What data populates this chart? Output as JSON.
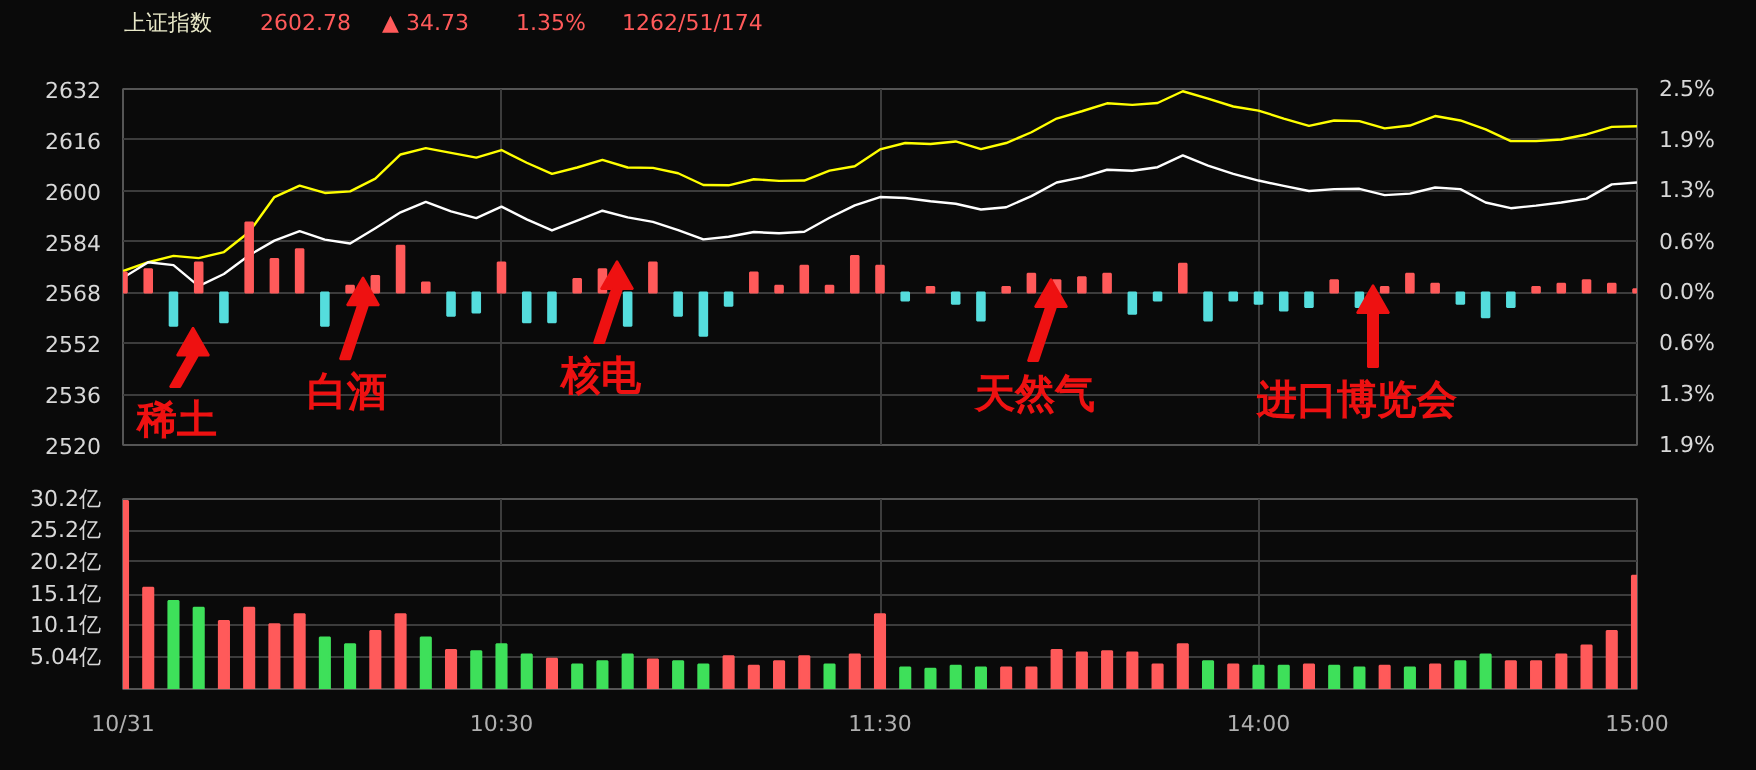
{
  "chart_data": [
    {
      "type": "line",
      "title": "上证指数",
      "annotations": [
        "2602.78",
        "▲ 34.73",
        "1.35%",
        "1262/51/174",
        {
          "text": "稀土",
          "y": 2557
        },
        {
          "text": "白酒",
          "y": 2572.8
        },
        {
          "text": "核电",
          "y": 2577.9
        },
        "天然气",
        "进口博览会"
      ],
      "categories": [
        null,
        null,
        null,
        null,
        null,
        null,
        null,
        null,
        null,
        null,
        null,
        null,
        null,
        null,
        null,
        null,
        null,
        null,
        null,
        null,
        null,
        null,
        null,
        null,
        null,
        null,
        null,
        null,
        null,
        null,
        null,
        null,
        null,
        null,
        null,
        null,
        null,
        null,
        null,
        null,
        null,
        null,
        null,
        null,
        null,
        null,
        null,
        null,
        null,
        null,
        null,
        null,
        null,
        null,
        null,
        null,
        null,
        null,
        null,
        null,
        null
      ],
      "ylim": [
        2520,
        2632
      ],
      "yticks": [
        2520,
        2536,
        2552,
        2568,
        2584,
        2600,
        2616,
        2632
      ],
      "y2lim": [
        -1.87,
        2.49
      ],
      "y2ticks": [
        {
          "value": -1.87,
          "label": "1.9%"
        },
        {
          "value": -1.25,
          "label": "1.3%"
        },
        {
          "value": -0.62,
          "label": "0.6%"
        },
        {
          "value": 0,
          "label": "0.0%"
        },
        {
          "value": 0.62,
          "label": "0.6%"
        },
        {
          "value": 1.25,
          "label": "1.3%"
        },
        {
          "value": 1.87,
          "label": "1.9%"
        },
        {
          "value": 2.49,
          "label": "2.5%"
        }
      ],
      "tick_labels": "y",
      "grid": true,
      "series": [
        {
          "type": "line",
          "color": "#ffff00",
          "values": [
            2574.7,
            2577.5,
            2579.5,
            2578.8,
            2580.7,
            2587,
            2598,
            2601.6,
            2599.3,
            2599.8,
            2603.8,
            2611.4,
            2613.4,
            2611.9,
            2610.4,
            2612.8,
            2608.8,
            2605.3,
            2607.3,
            2609.7,
            2607.3,
            2607.2,
            2605.5,
            2601.8,
            2601.7,
            2603.6,
            2603.1,
            2603.2,
            2606.3,
            2607.7,
            2613,
            2615,
            2614.7,
            2615.5,
            2613.1,
            2615,
            2618.4,
            2622.7,
            2625,
            2627.5,
            2627,
            2627.6,
            2631.3,
            2629,
            2626.5,
            2625.2,
            2622.7,
            2620.4,
            2622.1,
            2621.9,
            2619.6,
            2620.5,
            2623.5,
            2622.1,
            2619.3,
            2615.6,
            2615.6,
            2616.1,
            2617.7,
            2620.1,
            2620.3
          ]
        },
        {
          "type": "line",
          "color": "#ffffff",
          "values": [
            2572.6,
            2577.5,
            2576.6,
            2570,
            2573.8,
            2579.7,
            2584.3,
            2587.3,
            2584.6,
            2583.4,
            2588.2,
            2593.2,
            2596.5,
            2593.5,
            2591.4,
            2595,
            2591,
            2587.5,
            2590.6,
            2593.7,
            2591.6,
            2590.2,
            2587.6,
            2584.7,
            2585.5,
            2587,
            2586.6,
            2587.1,
            2591.5,
            2595.4,
            2598,
            2597.7,
            2596.7,
            2595.9,
            2594.1,
            2594.8,
            2598.3,
            2602.6,
            2604.2,
            2606.6,
            2606.3,
            2607.4,
            2611.1,
            2607.9,
            2605.3,
            2603.2,
            2601.5,
            2599.9,
            2600.5,
            2600.6,
            2598.6,
            2599.1,
            2601,
            2600.5,
            2596.3,
            2594.5,
            2595.3,
            2596.3,
            2597.5,
            2602,
            2602.6
          ]
        },
        {
          "type": "bar",
          "values": [
            6.3,
            7.3,
            -10.5,
            9.4,
            -9.4,
            22.0,
            10.5,
            13.6,
            -10.5,
            2.1,
            5.2,
            14.7,
            3.1,
            -7.3,
            -6.3,
            9.4,
            -9.4,
            -9.4,
            4.2,
            7.3,
            -10.5,
            9.4,
            -7.3,
            -13.6,
            -4.2,
            6.3,
            2.1,
            8.4,
            2.1,
            11.5,
            8.4,
            -2.5,
            1.7,
            -3.6,
            -8.8,
            1.7,
            5.9,
            3.8,
            4.8,
            5.9,
            -6.7,
            -2.5,
            9.0,
            -8.8,
            -2.5,
            -3.6,
            -5.7,
            -4.6,
            3.8,
            -4.6,
            1.7,
            5.9,
            2.7,
            -3.6,
            -7.8,
            -4.6,
            1.7,
            2.7,
            3.8,
            2.7,
            1.0
          ],
          "base": [
            2568,
            2568,
            2568,
            2568,
            2568,
            2568,
            2568,
            2568,
            2568,
            2568,
            2568,
            2568,
            2568,
            2568,
            2568,
            2568,
            2568,
            2568,
            2568,
            2568,
            2568,
            2568,
            2568,
            2568,
            2568,
            2568,
            2568,
            2568,
            2568,
            2568,
            2568,
            2568,
            2568,
            2568,
            2568,
            2568,
            2568,
            2568,
            2568,
            2568,
            2568,
            2568,
            2568,
            2568,
            2568,
            2568,
            2568,
            2568,
            2568,
            2568,
            2568,
            2568,
            2568,
            2568,
            2568,
            2568,
            2568,
            2568,
            2568,
            2568,
            2568
          ],
          "colors": [
            "#ff5a5a",
            "#ff5a5a",
            "#55dddd",
            "#ff5a5a",
            "#55dddd",
            "#ff5a5a",
            "#ff5a5a",
            "#ff5a5a",
            "#55dddd",
            "#ff5a5a",
            "#ff5a5a",
            "#ff5a5a",
            "#ff5a5a",
            "#55dddd",
            "#55dddd",
            "#ff5a5a",
            "#55dddd",
            "#55dddd",
            "#ff5a5a",
            "#ff5a5a",
            "#55dddd",
            "#ff5a5a",
            "#55dddd",
            "#55dddd",
            "#55dddd",
            "#ff5a5a",
            "#ff5a5a",
            "#ff5a5a",
            "#ff5a5a",
            "#ff5a5a",
            "#ff5a5a",
            "#55dddd",
            "#ff5a5a",
            "#55dddd",
            "#55dddd",
            "#ff5a5a",
            "#ff5a5a",
            "#ff5a5a",
            "#ff5a5a",
            "#ff5a5a",
            "#55dddd",
            "#55dddd",
            "#ff5a5a",
            "#55dddd",
            "#55dddd",
            "#55dddd",
            "#55dddd",
            "#55dddd",
            "#ff5a5a",
            "#55dddd",
            "#ff5a5a",
            "#ff5a5a",
            "#ff5a5a",
            "#55dddd",
            "#55dddd",
            "#55dddd",
            "#ff5a5a",
            "#ff5a5a",
            "#ff5a5a",
            "#ff5a5a",
            "#ff5a5a"
          ]
        }
      ]
    },
    {
      "type": "bar",
      "categories": [
        "10/31",
        null,
        null,
        null,
        null,
        null,
        null,
        null,
        null,
        null,
        null,
        null,
        null,
        null,
        null,
        "10:30",
        null,
        null,
        null,
        null,
        null,
        null,
        null,
        null,
        null,
        null,
        null,
        null,
        null,
        null,
        "11:30",
        null,
        null,
        null,
        null,
        null,
        null,
        null,
        null,
        null,
        null,
        null,
        null,
        null,
        null,
        "14:00",
        null,
        null,
        null,
        null,
        null,
        null,
        null,
        null,
        null,
        null,
        null,
        null,
        null,
        null,
        "15:00"
      ],
      "ylim": [
        0,
        30.2
      ],
      "yticks": [
        {
          "value": 5.04,
          "label": "5.04亿"
        },
        {
          "value": 10.1,
          "label": "10.1亿"
        },
        {
          "value": 15.1,
          "label": "15.1亿"
        },
        {
          "value": 20.2,
          "label": "20.2亿"
        },
        {
          "value": 25.2,
          "label": "25.2亿"
        },
        {
          "value": 30.2,
          "label": "30.2亿"
        }
      ],
      "grid": true,
      "values": [
        29.9,
        16.1,
        14.0,
        12.9,
        10.8,
        12.9,
        10.3,
        11.9,
        8.2,
        7.1,
        9.2,
        11.9,
        8.2,
        6.2,
        6.0,
        7.1,
        5.5,
        4.8,
        3.9,
        4.4,
        5.5,
        4.7,
        4.4,
        3.9,
        5.2,
        3.7,
        4.4,
        5.2,
        3.9,
        5.5,
        11.9,
        3.4,
        3.2,
        3.7,
        3.4,
        3.4,
        3.4,
        6.2,
        5.8,
        6.0,
        5.8,
        3.9,
        7.1,
        4.4,
        3.9,
        3.7,
        3.7,
        3.9,
        3.7,
        3.4,
        3.7,
        3.4,
        3.9,
        4.4,
        5.5,
        4.4,
        4.4,
        5.5,
        6.9,
        9.2,
        18.0
      ],
      "colors": [
        "#ff5a5a",
        "#ff5a5a",
        "#3ee05a",
        "#3ee05a",
        "#ff5a5a",
        "#ff5a5a",
        "#ff5a5a",
        "#ff5a5a",
        "#3ee05a",
        "#3ee05a",
        "#ff5a5a",
        "#ff5a5a",
        "#3ee05a",
        "#ff5a5a",
        "#3ee05a",
        "#3ee05a",
        "#3ee05a",
        "#ff5a5a",
        "#3ee05a",
        "#3ee05a",
        "#3ee05a",
        "#ff5a5a",
        "#3ee05a",
        "#3ee05a",
        "#ff5a5a",
        "#ff5a5a",
        "#ff5a5a",
        "#ff5a5a",
        "#3ee05a",
        "#ff5a5a",
        "#ff5a5a",
        "#3ee05a",
        "#3ee05a",
        "#3ee05a",
        "#3ee05a",
        "#ff5a5a",
        "#ff5a5a",
        "#ff5a5a",
        "#ff5a5a",
        "#ff5a5a",
        "#ff5a5a",
        "#ff5a5a",
        "#ff5a5a",
        "#3ee05a",
        "#ff5a5a",
        "#3ee05a",
        "#3ee05a",
        "#ff5a5a",
        "#3ee05a",
        "#3ee05a",
        "#ff5a5a",
        "#3ee05a",
        "#ff5a5a",
        "#3ee05a",
        "#3ee05a",
        "#ff5a5a",
        "#ff5a5a",
        "#ff5a5a",
        "#ff5a5a",
        "#ff5a5a",
        "#ff5a5a"
      ]
    }
  ]
}
